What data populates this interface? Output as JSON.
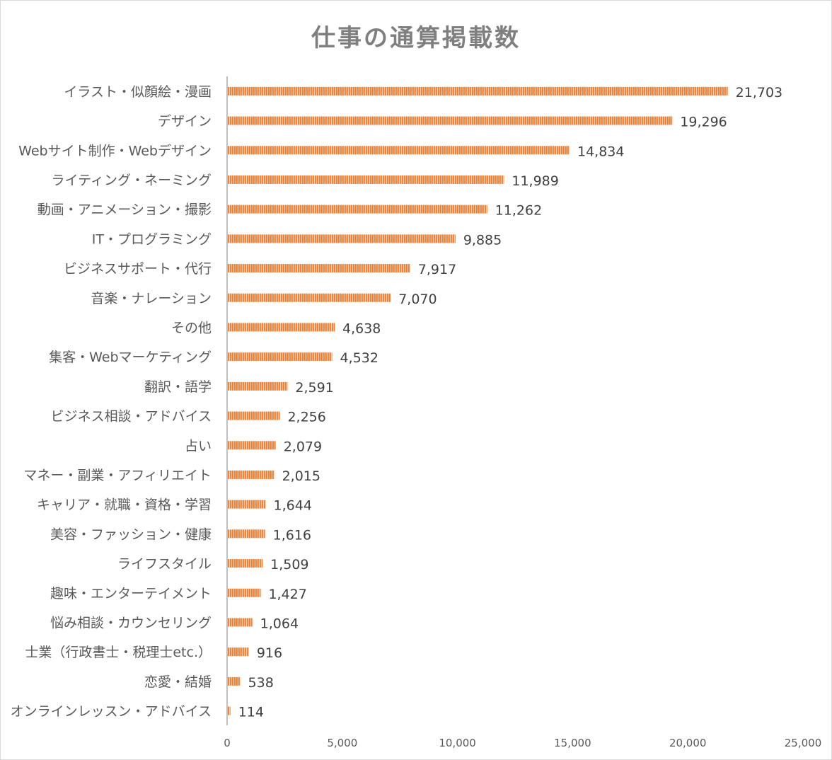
{
  "chart_data": {
    "type": "bar",
    "orientation": "horizontal",
    "title": "仕事の通算掲載数",
    "xlabel": "",
    "ylabel": "",
    "xlim": [
      0,
      25000
    ],
    "x_ticks": [
      "0",
      "5,000",
      "10,000",
      "15,000",
      "20,000",
      "25,000"
    ],
    "grid": false,
    "legend": "none",
    "bar_color": "#ed7d31",
    "categories": [
      "イラスト・似顔絵・漫画",
      "デザイン",
      "Webサイト制作・Webデザイン",
      "ライティング・ネーミング",
      "動画・アニメーション・撮影",
      "IT・プログラミング",
      "ビジネスサポート・代行",
      "音楽・ナレーション",
      "その他",
      "集客・Webマーケティング",
      "翻訳・語学",
      "ビジネス相談・アドバイス",
      "占い",
      "マネー・副業・アフィリエイト",
      "キャリア・就職・資格・学習",
      "美容・ファッション・健康",
      "ライフスタイル",
      "趣味・エンターテイメント",
      "悩み相談・カウンセリング",
      "士業（行政書士・税理士etc.）",
      "恋愛・結婚",
      "オンラインレッスン・アドバイス"
    ],
    "values": [
      21703,
      19296,
      14834,
      11989,
      11262,
      9885,
      7917,
      7070,
      4638,
      4532,
      2591,
      2256,
      2079,
      2015,
      1644,
      1616,
      1509,
      1427,
      1064,
      916,
      538,
      114
    ],
    "value_labels": [
      "21,703",
      "19,296",
      "14,834",
      "11,989",
      "11,262",
      "9,885",
      "7,917",
      "7,070",
      "4,638",
      "4,532",
      "2,591",
      "2,256",
      "2,079",
      "2,015",
      "1,644",
      "1,616",
      "1,509",
      "1,427",
      "1,064",
      "916",
      "538",
      "114"
    ]
  }
}
